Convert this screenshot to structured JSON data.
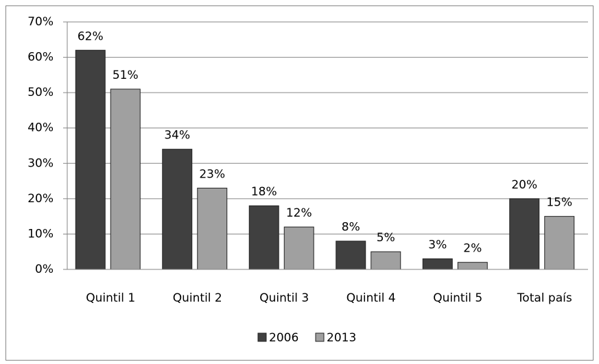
{
  "chart_data": {
    "type": "bar",
    "categories": [
      "Quintil 1",
      "Quintil 2",
      "Quintil 3",
      "Quintil 4",
      "Quintil 5",
      "Total país"
    ],
    "series": [
      {
        "name": "2006",
        "color": "#404040",
        "values": [
          62,
          34,
          18,
          8,
          3,
          20
        ],
        "value_labels": [
          "62%",
          "34%",
          "18%",
          "8%",
          "3%",
          "20%"
        ]
      },
      {
        "name": "2013",
        "color": "#a0a0a0",
        "values": [
          51,
          23,
          12,
          5,
          2,
          15
        ],
        "value_labels": [
          "51%",
          "23%",
          "12%",
          "5%",
          "2%",
          "15%"
        ]
      }
    ],
    "ylim": [
      0,
      70
    ],
    "yticks": [
      {
        "value": 0,
        "label": "0%"
      },
      {
        "value": 10,
        "label": "10%"
      },
      {
        "value": 20,
        "label": "20%"
      },
      {
        "value": 30,
        "label": "30%"
      },
      {
        "value": 40,
        "label": "40%"
      },
      {
        "value": 50,
        "label": "50%"
      },
      {
        "value": 60,
        "label": "60%"
      },
      {
        "value": 70,
        "label": "70%"
      }
    ],
    "grid": true,
    "legend": "bottom"
  }
}
